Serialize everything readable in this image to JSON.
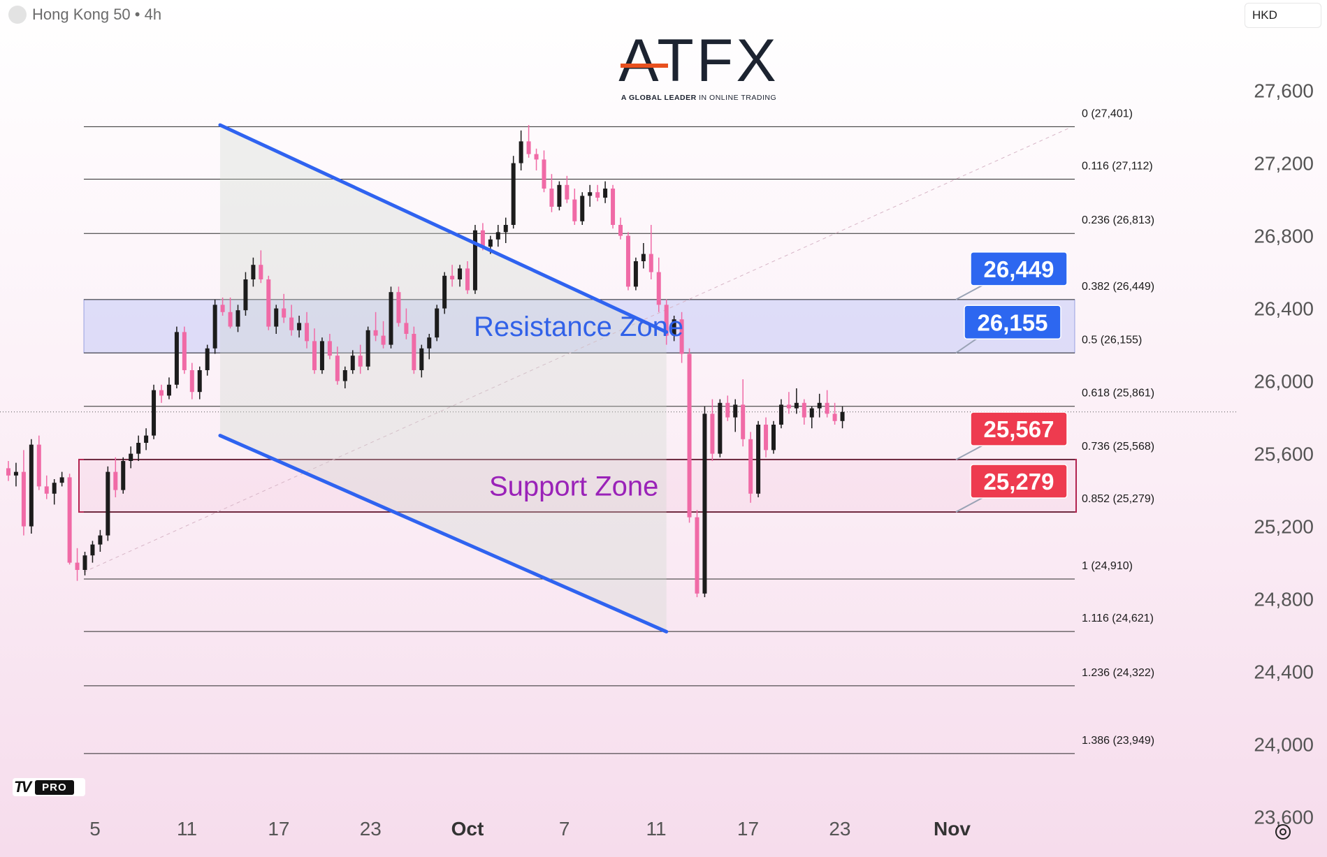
{
  "header": {
    "symbol_label": "Hong Kong 50 • 4h",
    "currency": "HKD"
  },
  "logo": {
    "word": "ATFX",
    "tagline_bold": "A GLOBAL LEADER",
    "tagline_rest": " IN ONLINE TRADING"
  },
  "badge": {
    "mark": "TV",
    "pro": "PRO"
  },
  "colors": {
    "up": "#1c1c1c",
    "down": "#f06aa6",
    "channel": "#2f63f0",
    "resistance": "#3161e8",
    "support": "#9a22b8",
    "price_blue": "#2d67f0",
    "price_red": "#ee3b4f"
  },
  "chart_data": {
    "type": "candlestick",
    "title": "",
    "ylim": [
      23560,
      27810
    ],
    "y_ticks": [
      "27,600",
      "27,200",
      "26,800",
      "26,400",
      "26,000",
      "25,600",
      "25,200",
      "24,800",
      "24,400",
      "24,000",
      "23,600"
    ],
    "y_tick_values": [
      27600,
      27200,
      26800,
      26400,
      26000,
      25600,
      25200,
      24800,
      24400,
      24000,
      23600
    ],
    "x_ticks": [
      "5",
      "11",
      "17",
      "23",
      "Oct",
      "7",
      "11",
      "17",
      "23",
      "Nov"
    ],
    "fib_levels": [
      {
        "label": "0 (27,401)",
        "value": 27401
      },
      {
        "label": "0.116 (27,112)",
        "value": 27112
      },
      {
        "label": "0.236 (26,813)",
        "value": 26813
      },
      {
        "label": "0.382 (26,449)",
        "value": 26449
      },
      {
        "label": "0.5 (26,155)",
        "value": 26155
      },
      {
        "label": "0.618 (25,861)",
        "value": 25861
      },
      {
        "label": "0.736 (25,568)",
        "value": 25568
      },
      {
        "label": "0.852 (25,279)",
        "value": 25279
      },
      {
        "label": "1 (24,910)",
        "value": 24910
      },
      {
        "label": "1.116 (24,621)",
        "value": 24621
      },
      {
        "label": "1.236 (24,322)",
        "value": 24322
      },
      {
        "label": "1.386 (23,949)",
        "value": 23949
      }
    ],
    "zones": [
      {
        "label": "Resistance Zone",
        "low": 26155,
        "high": 26449
      },
      {
        "label": "Support Zone",
        "low": 25279,
        "high": 25568
      }
    ],
    "price_labels": [
      {
        "text": "26,449",
        "value": 26449,
        "color": "blue"
      },
      {
        "text": "26,155",
        "value": 26155,
        "color": "blue"
      },
      {
        "text": "25,567",
        "value": 25567,
        "color": "red"
      },
      {
        "text": "25,279",
        "value": 25279,
        "color": "red"
      }
    ],
    "channel": {
      "upper": [
        [
          8.3,
          27410
        ],
        [
          25.8,
          26270
        ]
      ],
      "lower": [
        [
          8.3,
          25700
        ],
        [
          25.8,
          24620
        ]
      ]
    },
    "candles": [
      [
        0.0,
        25520,
        25560,
        25450,
        25480
      ],
      [
        0.3,
        25480,
        25550,
        25420,
        25500
      ],
      [
        0.6,
        25500,
        25620,
        25150,
        25200
      ],
      [
        0.9,
        25200,
        25680,
        25160,
        25650
      ],
      [
        1.2,
        25650,
        25700,
        25400,
        25420
      ],
      [
        1.5,
        25420,
        25480,
        25350,
        25380
      ],
      [
        1.8,
        25380,
        25460,
        25320,
        25440
      ],
      [
        2.1,
        25440,
        25500,
        25420,
        25470
      ],
      [
        2.4,
        25470,
        25490,
        24990,
        25000
      ],
      [
        2.7,
        25000,
        25080,
        24900,
        24960
      ],
      [
        3.0,
        24960,
        25060,
        24930,
        25040
      ],
      [
        3.3,
        25040,
        25120,
        25000,
        25100
      ],
      [
        3.6,
        25100,
        25180,
        25060,
        25150
      ],
      [
        3.9,
        25150,
        25530,
        25120,
        25500
      ],
      [
        4.2,
        25500,
        25580,
        25360,
        25400
      ],
      [
        4.5,
        25400,
        25580,
        25380,
        25560
      ],
      [
        4.8,
        25560,
        25640,
        25520,
        25600
      ],
      [
        5.1,
        25600,
        25700,
        25560,
        25660
      ],
      [
        5.4,
        25660,
        25740,
        25620,
        25700
      ],
      [
        5.7,
        25700,
        25980,
        25680,
        25950
      ],
      [
        6.0,
        25950,
        25980,
        25880,
        25920
      ],
      [
        6.3,
        25920,
        26020,
        25900,
        25980
      ],
      [
        6.6,
        25980,
        26300,
        25960,
        26270
      ],
      [
        6.9,
        26270,
        26300,
        26040,
        26060
      ],
      [
        7.2,
        26060,
        26100,
        25900,
        25940
      ],
      [
        7.5,
        25940,
        26080,
        25900,
        26060
      ],
      [
        7.8,
        26060,
        26200,
        26030,
        26180
      ],
      [
        8.1,
        26180,
        26450,
        26150,
        26420
      ],
      [
        8.4,
        26420,
        26460,
        26360,
        26380
      ],
      [
        8.7,
        26380,
        26460,
        26290,
        26300
      ],
      [
        9.0,
        26300,
        26420,
        26270,
        26390
      ],
      [
        9.3,
        26390,
        26600,
        26360,
        26560
      ],
      [
        9.6,
        26560,
        26680,
        26520,
        26640
      ],
      [
        9.9,
        26640,
        26720,
        26540,
        26560
      ],
      [
        10.2,
        26560,
        26580,
        26280,
        26300
      ],
      [
        10.5,
        26300,
        26420,
        26260,
        26400
      ],
      [
        10.8,
        26400,
        26480,
        26320,
        26350
      ],
      [
        11.1,
        26350,
        26420,
        26250,
        26280
      ],
      [
        11.4,
        26280,
        26360,
        26240,
        26320
      ],
      [
        11.7,
        26320,
        26380,
        26180,
        26220
      ],
      [
        12.0,
        26220,
        26290,
        26040,
        26060
      ],
      [
        12.3,
        26060,
        26240,
        26040,
        26220
      ],
      [
        12.6,
        26220,
        26260,
        26120,
        26140
      ],
      [
        12.9,
        26140,
        26190,
        25980,
        26000
      ],
      [
        13.2,
        26000,
        26080,
        25960,
        26060
      ],
      [
        13.5,
        26060,
        26170,
        26040,
        26140
      ],
      [
        13.8,
        26140,
        26200,
        26040,
        26080
      ],
      [
        14.1,
        26080,
        26300,
        26060,
        26280
      ],
      [
        14.4,
        26280,
        26380,
        26220,
        26250
      ],
      [
        14.7,
        26250,
        26330,
        26180,
        26200
      ],
      [
        15.0,
        26200,
        26520,
        26180,
        26490
      ],
      [
        15.3,
        26490,
        26520,
        26300,
        26320
      ],
      [
        15.6,
        26320,
        26400,
        26230,
        26260
      ],
      [
        15.9,
        26260,
        26300,
        26040,
        26060
      ],
      [
        16.2,
        26060,
        26200,
        26020,
        26180
      ],
      [
        16.5,
        26180,
        26260,
        26120,
        26240
      ],
      [
        16.8,
        26240,
        26420,
        26220,
        26400
      ],
      [
        17.1,
        26400,
        26600,
        26370,
        26580
      ],
      [
        17.4,
        26580,
        26640,
        26520,
        26560
      ],
      [
        17.7,
        26560,
        26640,
        26520,
        26620
      ],
      [
        18.0,
        26620,
        26660,
        26480,
        26500
      ],
      [
        18.3,
        26500,
        26860,
        26480,
        26830
      ],
      [
        18.6,
        26830,
        26870,
        26720,
        26740
      ],
      [
        18.9,
        26740,
        26800,
        26700,
        26780
      ],
      [
        19.2,
        26780,
        26860,
        26740,
        26820
      ],
      [
        19.5,
        26820,
        26900,
        26760,
        26860
      ],
      [
        19.8,
        26860,
        27240,
        26840,
        27200
      ],
      [
        20.1,
        27200,
        27380,
        27160,
        27320
      ],
      [
        20.4,
        27320,
        27410,
        27230,
        27250
      ],
      [
        20.7,
        27250,
        27280,
        27160,
        27220
      ],
      [
        21.0,
        27220,
        27270,
        27040,
        27060
      ],
      [
        21.3,
        27060,
        27140,
        26930,
        26960
      ],
      [
        21.6,
        26960,
        27100,
        26940,
        27080
      ],
      [
        21.9,
        27080,
        27130,
        26980,
        27000
      ],
      [
        22.2,
        27000,
        27060,
        26860,
        26880
      ],
      [
        22.5,
        26880,
        27040,
        26860,
        27020
      ],
      [
        22.8,
        27020,
        27080,
        26960,
        27040
      ],
      [
        23.1,
        27040,
        27080,
        26990,
        27010
      ],
      [
        23.4,
        27010,
        27100,
        26980,
        27060
      ],
      [
        23.7,
        27060,
        27080,
        26840,
        26860
      ],
      [
        24.0,
        26860,
        26900,
        26780,
        26800
      ],
      [
        24.3,
        26800,
        26820,
        26500,
        26520
      ],
      [
        24.6,
        26520,
        26680,
        26500,
        26660
      ],
      [
        24.9,
        26660,
        26760,
        26620,
        26700
      ],
      [
        25.2,
        26700,
        26860,
        26560,
        26600
      ],
      [
        25.5,
        26600,
        26680,
        26380,
        26420
      ],
      [
        25.8,
        26420,
        26450,
        26200,
        26250
      ],
      [
        26.1,
        26250,
        26360,
        26220,
        26340
      ],
      [
        26.4,
        26340,
        26380,
        26100,
        26150
      ],
      [
        26.7,
        26150,
        26180,
        25220,
        25250
      ],
      [
        27.0,
        25250,
        25290,
        24810,
        24830
      ],
      [
        27.3,
        24830,
        25860,
        24810,
        25820
      ],
      [
        27.6,
        25820,
        25900,
        25560,
        25600
      ],
      [
        27.9,
        25600,
        25900,
        25580,
        25880
      ],
      [
        28.2,
        25880,
        25920,
        25780,
        25800
      ],
      [
        28.5,
        25800,
        25900,
        25720,
        25870
      ],
      [
        28.8,
        25870,
        26010,
        25640,
        25680
      ],
      [
        29.1,
        25680,
        25720,
        25330,
        25380
      ],
      [
        29.4,
        25380,
        25780,
        25360,
        25760
      ],
      [
        29.7,
        25760,
        25800,
        25580,
        25620
      ],
      [
        30.0,
        25620,
        25780,
        25600,
        25760
      ],
      [
        30.3,
        25760,
        25900,
        25740,
        25870
      ],
      [
        30.6,
        25870,
        25940,
        25820,
        25850
      ],
      [
        30.9,
        25850,
        25960,
        25820,
        25880
      ],
      [
        31.2,
        25880,
        25900,
        25760,
        25800
      ],
      [
        31.5,
        25800,
        25860,
        25740,
        25850
      ],
      [
        31.8,
        25850,
        25930,
        25800,
        25880
      ],
      [
        32.1,
        25880,
        25950,
        25800,
        25820
      ],
      [
        32.4,
        25820,
        25880,
        25760,
        25780
      ],
      [
        32.7,
        25780,
        25860,
        25740,
        25830
      ]
    ]
  }
}
